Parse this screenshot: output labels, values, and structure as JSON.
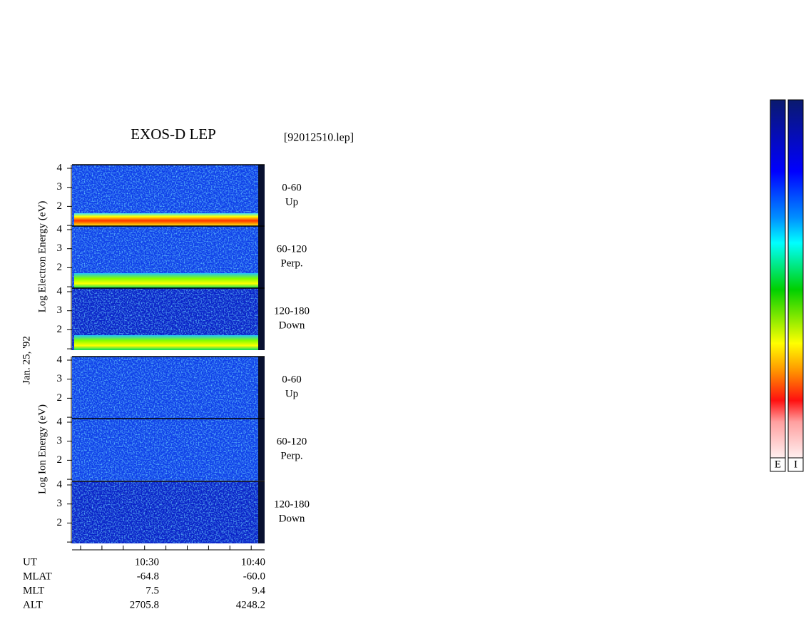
{
  "title": "EXOS-D LEP",
  "file": "[92012510.lep]",
  "date": "Jan. 25, '92",
  "electron_axis_label": "Log Electron Energy (eV)",
  "ion_axis_label": "Log Ion Energy (eV)",
  "energy_ticks": [
    2,
    3,
    4
  ],
  "panels": [
    {
      "pitch": "0-60",
      "direction": "Up"
    },
    {
      "pitch": "60-120",
      "direction": "Perp."
    },
    {
      "pitch": "120-180",
      "direction": "Down"
    },
    {
      "pitch": "0-60",
      "direction": "Up"
    },
    {
      "pitch": "60-120",
      "direction": "Perp."
    },
    {
      "pitch": "120-180",
      "direction": "Down"
    }
  ],
  "ephemeris": {
    "rows": [
      [
        "UT",
        "10:30",
        "10:40"
      ],
      [
        "MLAT",
        "-64.8",
        "-60.0"
      ],
      [
        "MLT",
        "7.5",
        "9.4"
      ],
      [
        "ALT",
        "2705.8",
        "4248.2"
      ]
    ]
  },
  "colorbars": [
    "E",
    "I"
  ]
}
